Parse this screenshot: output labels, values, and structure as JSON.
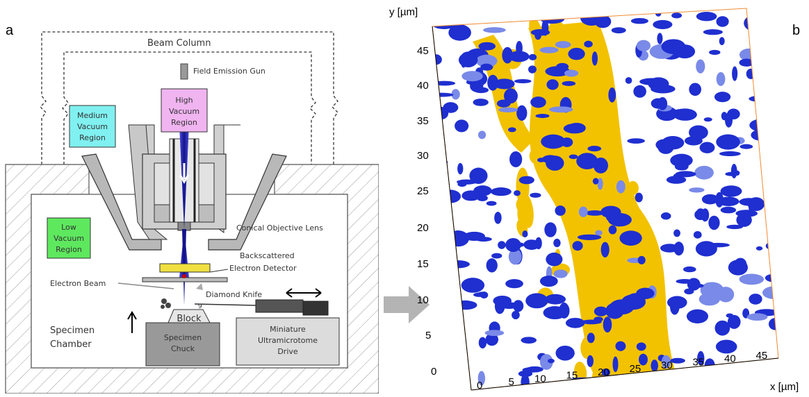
{
  "panel_a": {
    "letter": "a",
    "labels": {
      "beam_column": "Beam Column",
      "field_emission_gun": "Field Emission Gun",
      "high_vacuum_1": "High",
      "high_vacuum_2": "Vacuum",
      "high_vacuum_3": "Region",
      "medium_vacuum_1": "Medium",
      "medium_vacuum_2": "Vacuum",
      "medium_vacuum_3": "Region",
      "low_vacuum_1": "Low",
      "low_vacuum_2": "Vacuum",
      "low_vacuum_3": "Region",
      "conical_objective_lens": "Conical Objective Lens",
      "backscattered_1": "Backscattered",
      "backscattered_2": "Electron Detector",
      "electron_beam": "Electron Beam",
      "diamond_knife": "Diamond Knife",
      "block": "Block",
      "specimen_chamber_1": "Specimen",
      "specimen_chamber_2": "Chamber",
      "specimen_chuck_1": "Specimen",
      "specimen_chuck_2": "Chuck",
      "drive_1": "Miniature",
      "drive_2": "Ultramicrotome",
      "drive_3": "Drive"
    },
    "colors": {
      "high_vacuum": "#f0b4f0",
      "medium_vacuum": "#80f0f0",
      "low_vacuum": "#5ee85e",
      "beam": "#1a1aa8",
      "lens_gray": "#b8b8b8"
    }
  },
  "panel_b": {
    "letter": "b",
    "y_axis_label": "y [µm]",
    "x_axis_label": "x [µm]",
    "y_ticks": [
      "0",
      "5",
      "10",
      "15",
      "20",
      "25",
      "30",
      "35",
      "40",
      "45"
    ],
    "x_ticks": [
      "0",
      "5",
      "10",
      "15",
      "20",
      "25",
      "30",
      "35",
      "40",
      "45"
    ],
    "colors": {
      "blue_phase": "#1f2fd0",
      "yellow_phase": "#f2c200",
      "box": "#f08a30"
    }
  },
  "arrow_icon": "right-arrow-icon"
}
